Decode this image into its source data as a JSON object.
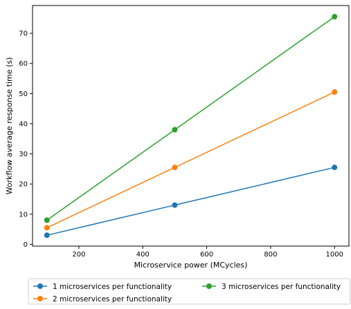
{
  "chart_data": {
    "type": "line",
    "title": "",
    "xlabel": "Microservice power (MCycles)",
    "ylabel": "Workflow average response time (s)",
    "x": [
      100,
      500,
      1000
    ],
    "xlim": [
      55,
      1045
    ],
    "ylim": [
      -0.6,
      79.2
    ],
    "xticks": [
      200,
      400,
      600,
      800,
      1000
    ],
    "yticks": [
      0,
      10,
      20,
      30,
      40,
      50,
      60,
      70
    ],
    "grid": false,
    "legend_position": "bottom-center",
    "series": [
      {
        "name": "1 microservices per functionality",
        "color": "#1f77b4",
        "values": [
          3.0,
          13.0,
          25.5
        ]
      },
      {
        "name": "2 microservices per functionality",
        "color": "#ff7f0e",
        "values": [
          5.5,
          25.5,
          50.5
        ]
      },
      {
        "name": "3 microservices per functionality",
        "color": "#2ca02c",
        "values": [
          8.0,
          38.0,
          75.5
        ]
      }
    ]
  }
}
